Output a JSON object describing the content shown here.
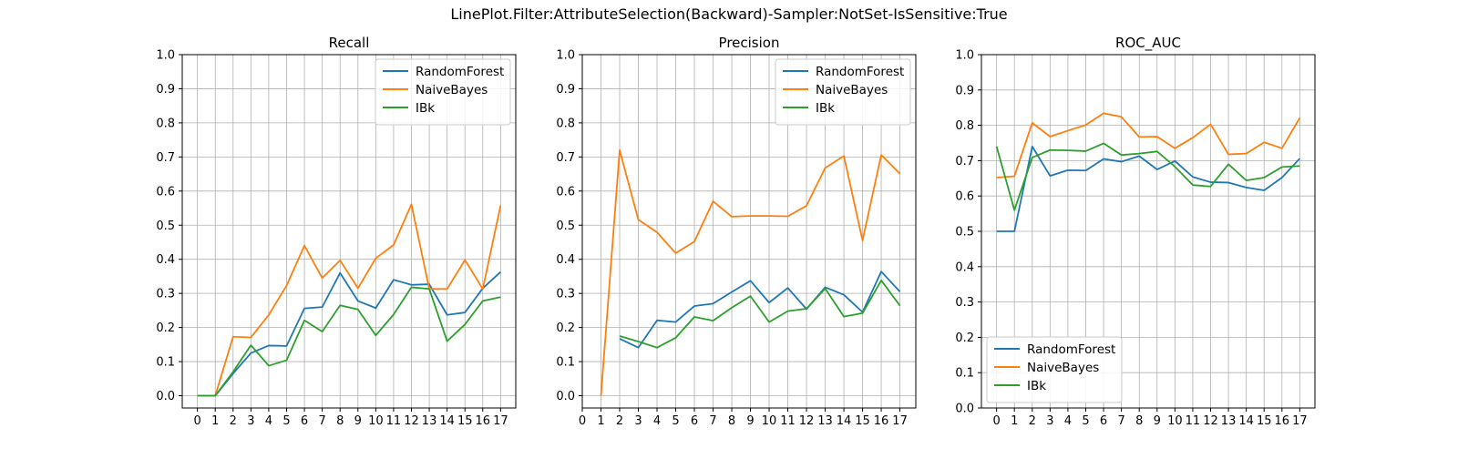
{
  "suptitle": "LinePlot.Filter:AttributeSelection(Backward)-Sampler:NotSet-IsSensitive:True",
  "colors": {
    "RandomForest": "#1f77b4",
    "NaiveBayes": "#ff7f0e",
    "IBk": "#2ca02c",
    "grid": "#b0b0b0",
    "axis": "#000000"
  },
  "chart_data": [
    {
      "type": "line",
      "title": "Recall",
      "xlabel": "",
      "ylabel": "",
      "x": [
        0,
        1,
        2,
        3,
        4,
        5,
        6,
        7,
        8,
        9,
        10,
        11,
        12,
        13,
        14,
        15,
        16,
        17
      ],
      "xticks": [
        "0",
        "1",
        "2",
        "3",
        "4",
        "5",
        "6",
        "7",
        "8",
        "9",
        "10",
        "11",
        "12",
        "13",
        "14",
        "15",
        "16",
        "17"
      ],
      "yticks": [
        "0.0",
        "0.1",
        "0.2",
        "0.3",
        "0.4",
        "0.5",
        "0.6",
        "0.7",
        "0.8",
        "0.9",
        "1.0"
      ],
      "ylim": [
        -0.036,
        1.0
      ],
      "xlim": [
        -0.85,
        17.85
      ],
      "grid": true,
      "legend_position": "top-right",
      "series": [
        {
          "name": "RandomForest",
          "values": [
            0.0,
            0.0,
            0.065,
            0.125,
            0.147,
            0.146,
            0.256,
            0.26,
            0.36,
            0.278,
            0.257,
            0.34,
            0.325,
            0.327,
            0.237,
            0.244,
            0.315,
            0.363
          ]
        },
        {
          "name": "NaiveBayes",
          "values": [
            0.0,
            0.0,
            0.173,
            0.171,
            0.237,
            0.323,
            0.44,
            0.345,
            0.397,
            0.315,
            0.403,
            0.442,
            0.561,
            0.313,
            0.313,
            0.398,
            0.313,
            0.558
          ]
        },
        {
          "name": "IBk",
          "values": [
            0.0,
            0.0,
            0.07,
            0.148,
            0.088,
            0.104,
            0.221,
            0.188,
            0.265,
            0.253,
            0.177,
            0.238,
            0.318,
            0.313,
            0.16,
            0.209,
            0.278,
            0.289
          ]
        }
      ]
    },
    {
      "type": "line",
      "title": "Precision",
      "xlabel": "",
      "ylabel": "",
      "x": [
        0,
        1,
        2,
        3,
        4,
        5,
        6,
        7,
        8,
        9,
        10,
        11,
        12,
        13,
        14,
        15,
        16,
        17
      ],
      "xticks": [
        "0",
        "1",
        "2",
        "3",
        "4",
        "5",
        "6",
        "7",
        "8",
        "9",
        "10",
        "11",
        "12",
        "13",
        "14",
        "15",
        "16",
        "17"
      ],
      "yticks": [
        "0.0",
        "0.1",
        "0.2",
        "0.3",
        "0.4",
        "0.5",
        "0.6",
        "0.7",
        "0.8",
        "0.9",
        "1.0"
      ],
      "ylim": [
        -0.036,
        1.0
      ],
      "xlim": [
        0,
        17.85
      ],
      "grid": true,
      "legend_position": "top-right",
      "series": [
        {
          "name": "RandomForest",
          "values": [
            null,
            null,
            0.167,
            0.141,
            0.221,
            0.216,
            0.263,
            0.27,
            0.304,
            0.337,
            0.273,
            0.316,
            0.254,
            0.318,
            0.296,
            0.245,
            0.364,
            0.305
          ]
        },
        {
          "name": "NaiveBayes",
          "values": [
            null,
            0.0,
            0.72,
            0.516,
            0.479,
            0.418,
            0.452,
            0.57,
            0.525,
            0.527,
            0.527,
            0.526,
            0.557,
            0.668,
            0.703,
            0.455,
            0.706,
            0.651
          ]
        },
        {
          "name": "IBk",
          "values": [
            null,
            null,
            0.175,
            0.159,
            0.141,
            0.17,
            0.231,
            0.22,
            0.258,
            0.292,
            0.216,
            0.248,
            0.255,
            0.314,
            0.232,
            0.242,
            0.338,
            0.264
          ]
        }
      ]
    },
    {
      "type": "line",
      "title": "ROC_AUC",
      "xlabel": "",
      "ylabel": "",
      "x": [
        0,
        1,
        2,
        3,
        4,
        5,
        6,
        7,
        8,
        9,
        10,
        11,
        12,
        13,
        14,
        15,
        16,
        17
      ],
      "xticks": [
        "0",
        "1",
        "2",
        "3",
        "4",
        "5",
        "6",
        "7",
        "8",
        "9",
        "10",
        "11",
        "12",
        "13",
        "14",
        "15",
        "16",
        "17"
      ],
      "yticks": [
        "0.0",
        "0.1",
        "0.2",
        "0.3",
        "0.4",
        "0.5",
        "0.6",
        "0.7",
        "0.8",
        "0.9",
        "1.0"
      ],
      "ylim": [
        0.0,
        1.0
      ],
      "xlim": [
        -0.85,
        17.85
      ],
      "grid": true,
      "legend_position": "bottom-left",
      "series": [
        {
          "name": "RandomForest",
          "values": [
            0.5,
            0.5,
            0.74,
            0.657,
            0.673,
            0.672,
            0.705,
            0.697,
            0.713,
            0.675,
            0.699,
            0.654,
            0.639,
            0.638,
            0.624,
            0.616,
            0.652,
            0.706
          ]
        },
        {
          "name": "NaiveBayes",
          "values": [
            0.652,
            0.656,
            0.807,
            0.768,
            0.785,
            0.801,
            0.834,
            0.824,
            0.767,
            0.768,
            0.735,
            0.765,
            0.803,
            0.718,
            0.72,
            0.752,
            0.735,
            0.821
          ]
        },
        {
          "name": "IBk",
          "values": [
            0.74,
            0.56,
            0.709,
            0.73,
            0.729,
            0.727,
            0.749,
            0.716,
            0.72,
            0.726,
            0.683,
            0.631,
            0.627,
            0.69,
            0.644,
            0.652,
            0.682,
            0.685
          ]
        }
      ]
    }
  ]
}
